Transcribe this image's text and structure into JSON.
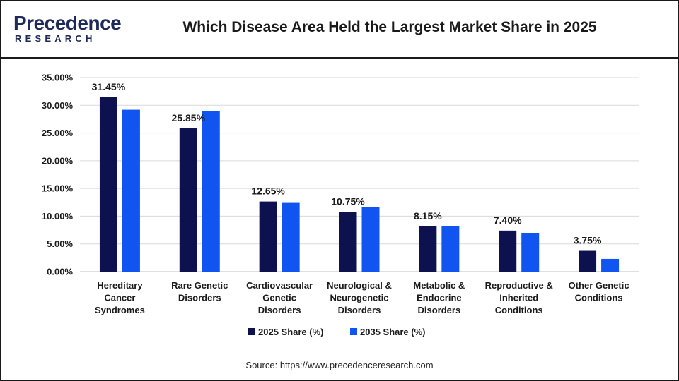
{
  "header": {
    "logo_text": "Precedence",
    "logo_subtext": "RESEARCH",
    "title": "Which Disease Area Held the Largest Market Share in 2025"
  },
  "source": "Source: https://www.precedenceresearch.com",
  "colors": {
    "series_2025": "#0d1150",
    "series_2035": "#1155f0",
    "grid": "#d9d9d9",
    "text": "#1a1a1a"
  },
  "chart_data": {
    "type": "bar",
    "categories": [
      [
        "Hereditary",
        "Cancer",
        "Syndromes"
      ],
      [
        "Rare Genetic",
        "Disorders"
      ],
      [
        "Cardiovascular",
        "Genetic",
        "Disorders"
      ],
      [
        "Neurological &",
        "Neurogenetic",
        "Disorders"
      ],
      [
        "Metabolic &",
        "Endocrine",
        "Disorders"
      ],
      [
        "Reproductive &",
        "Inherited",
        "Conditions"
      ],
      [
        "Other Genetic",
        "Conditions"
      ]
    ],
    "series": [
      {
        "name": "2025 Share (%)",
        "values": [
          31.45,
          25.85,
          12.65,
          10.75,
          8.15,
          7.4,
          3.75
        ]
      },
      {
        "name": "2035 Share (%)",
        "values": [
          29.2,
          29.0,
          12.4,
          11.7,
          8.15,
          7.0,
          2.3
        ]
      }
    ],
    "data_labels": [
      "31.45%",
      "25.85%",
      "12.65%",
      "10.75%",
      "8.15%",
      "7.40%",
      "3.75%"
    ],
    "y_ticks": [
      "0.00%",
      "5.00%",
      "10.00%",
      "15.00%",
      "20.00%",
      "25.00%",
      "30.00%",
      "35.00%"
    ],
    "ylim": [
      0,
      35
    ],
    "grid": true,
    "legend_position": "bottom"
  }
}
